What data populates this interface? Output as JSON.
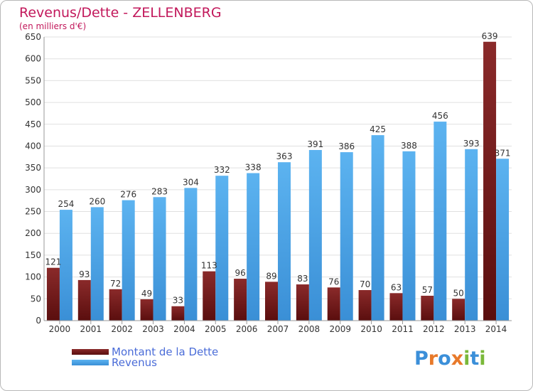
{
  "chart_data": {
    "type": "bar",
    "title": "Revenus/Dette - ZELLENBERG",
    "subtitle": "(en milliers d'€)",
    "categories": [
      "2000",
      "2001",
      "2002",
      "2003",
      "2004",
      "2005",
      "2006",
      "2007",
      "2008",
      "2009",
      "2010",
      "2011",
      "2012",
      "2013",
      "2014"
    ],
    "series": [
      {
        "name": "Montant de la Dette",
        "color": "#7a1f1f",
        "values": [
          121,
          93,
          72,
          49,
          33,
          113,
          96,
          89,
          83,
          76,
          70,
          63,
          57,
          50,
          639
        ]
      },
      {
        "name": "Revenus",
        "color": "#4aa3e8",
        "values": [
          254,
          260,
          276,
          283,
          304,
          332,
          338,
          363,
          391,
          386,
          425,
          388,
          456,
          393,
          371
        ]
      }
    ],
    "ylim": [
      0,
      650
    ],
    "yticks": [
      0,
      50,
      100,
      150,
      200,
      250,
      300,
      350,
      400,
      450,
      500,
      550,
      600,
      650
    ],
    "grid": true,
    "legend_position": "bottom-left"
  },
  "logo": {
    "text": "Proxiti",
    "letters": [
      {
        "ch": "P",
        "color": "#3b8fd9"
      },
      {
        "ch": "r",
        "color": "#e8792a"
      },
      {
        "ch": "o",
        "color": "#3b8fd9"
      },
      {
        "ch": "x",
        "color": "#e8792a"
      },
      {
        "ch": "i",
        "color": "#7ab83a"
      },
      {
        "ch": "t",
        "color": "#3b8fd9"
      },
      {
        "ch": "i",
        "color": "#7ab83a"
      }
    ]
  },
  "colors": {
    "title": "#c2185b",
    "axis_text": "#333333",
    "grid": "#e0e0e0"
  }
}
